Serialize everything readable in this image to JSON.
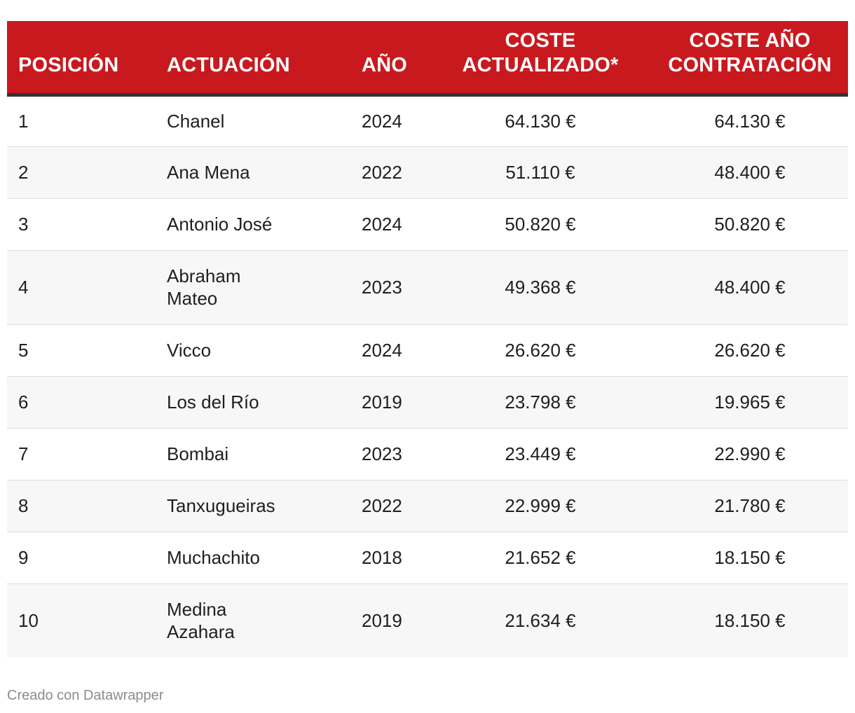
{
  "chart_data": {
    "type": "table",
    "columns": [
      "POSICIÓN",
      "ACTUACIÓN",
      "AÑO",
      "COSTE ACTUALIZADO*",
      "COSTE AÑO CONTRATACIÓN"
    ],
    "rows": [
      {
        "posicion": "1",
        "actuacion": "Chanel",
        "ano": "2024",
        "coste_actualizado": "64.130 €",
        "coste_contratacion": "64.130 €"
      },
      {
        "posicion": "2",
        "actuacion": "Ana Mena",
        "ano": "2022",
        "coste_actualizado": "51.110 €",
        "coste_contratacion": "48.400 €"
      },
      {
        "posicion": "3",
        "actuacion": "Antonio José",
        "ano": "2024",
        "coste_actualizado": "50.820 €",
        "coste_contratacion": "50.820 €"
      },
      {
        "posicion": "4",
        "actuacion": "Abraham Mateo",
        "ano": "2023",
        "coste_actualizado": "49.368 €",
        "coste_contratacion": "48.400 €"
      },
      {
        "posicion": "5",
        "actuacion": "Vicco",
        "ano": "2024",
        "coste_actualizado": "26.620 €",
        "coste_contratacion": "26.620 €"
      },
      {
        "posicion": "6",
        "actuacion": "Los del Río",
        "ano": "2019",
        "coste_actualizado": "23.798 €",
        "coste_contratacion": "19.965 €"
      },
      {
        "posicion": "7",
        "actuacion": "Bombai",
        "ano": "2023",
        "coste_actualizado": "23.449 €",
        "coste_contratacion": "22.990 €"
      },
      {
        "posicion": "8",
        "actuacion": "Tanxugueiras",
        "ano": "2022",
        "coste_actualizado": "22.999 €",
        "coste_contratacion": "21.780 €"
      },
      {
        "posicion": "9",
        "actuacion": "Muchachito",
        "ano": "2018",
        "coste_actualizado": "21.652 €",
        "coste_contratacion": "18.150 €"
      },
      {
        "posicion": "10",
        "actuacion": "Medina Azahara",
        "ano": "2019",
        "coste_actualizado": "21.634 €",
        "coste_contratacion": "18.150 €"
      }
    ]
  },
  "header": {
    "posicion": "POSICIÓN",
    "actuacion": "ACTUACIÓN",
    "ano": "AÑO",
    "coste_actualizado": "COSTE ACTUALIZADO*",
    "coste_contratacion": "COSTE AÑO CONTRATACIÓN"
  },
  "footer": {
    "credit": "Creado con Datawrapper"
  },
  "colors": {
    "header_background": "#c8191f",
    "header_text": "#ffffff",
    "header_rule": "#333333",
    "row_alt": "#f7f7f7",
    "credit_text": "#8c8c8c"
  }
}
